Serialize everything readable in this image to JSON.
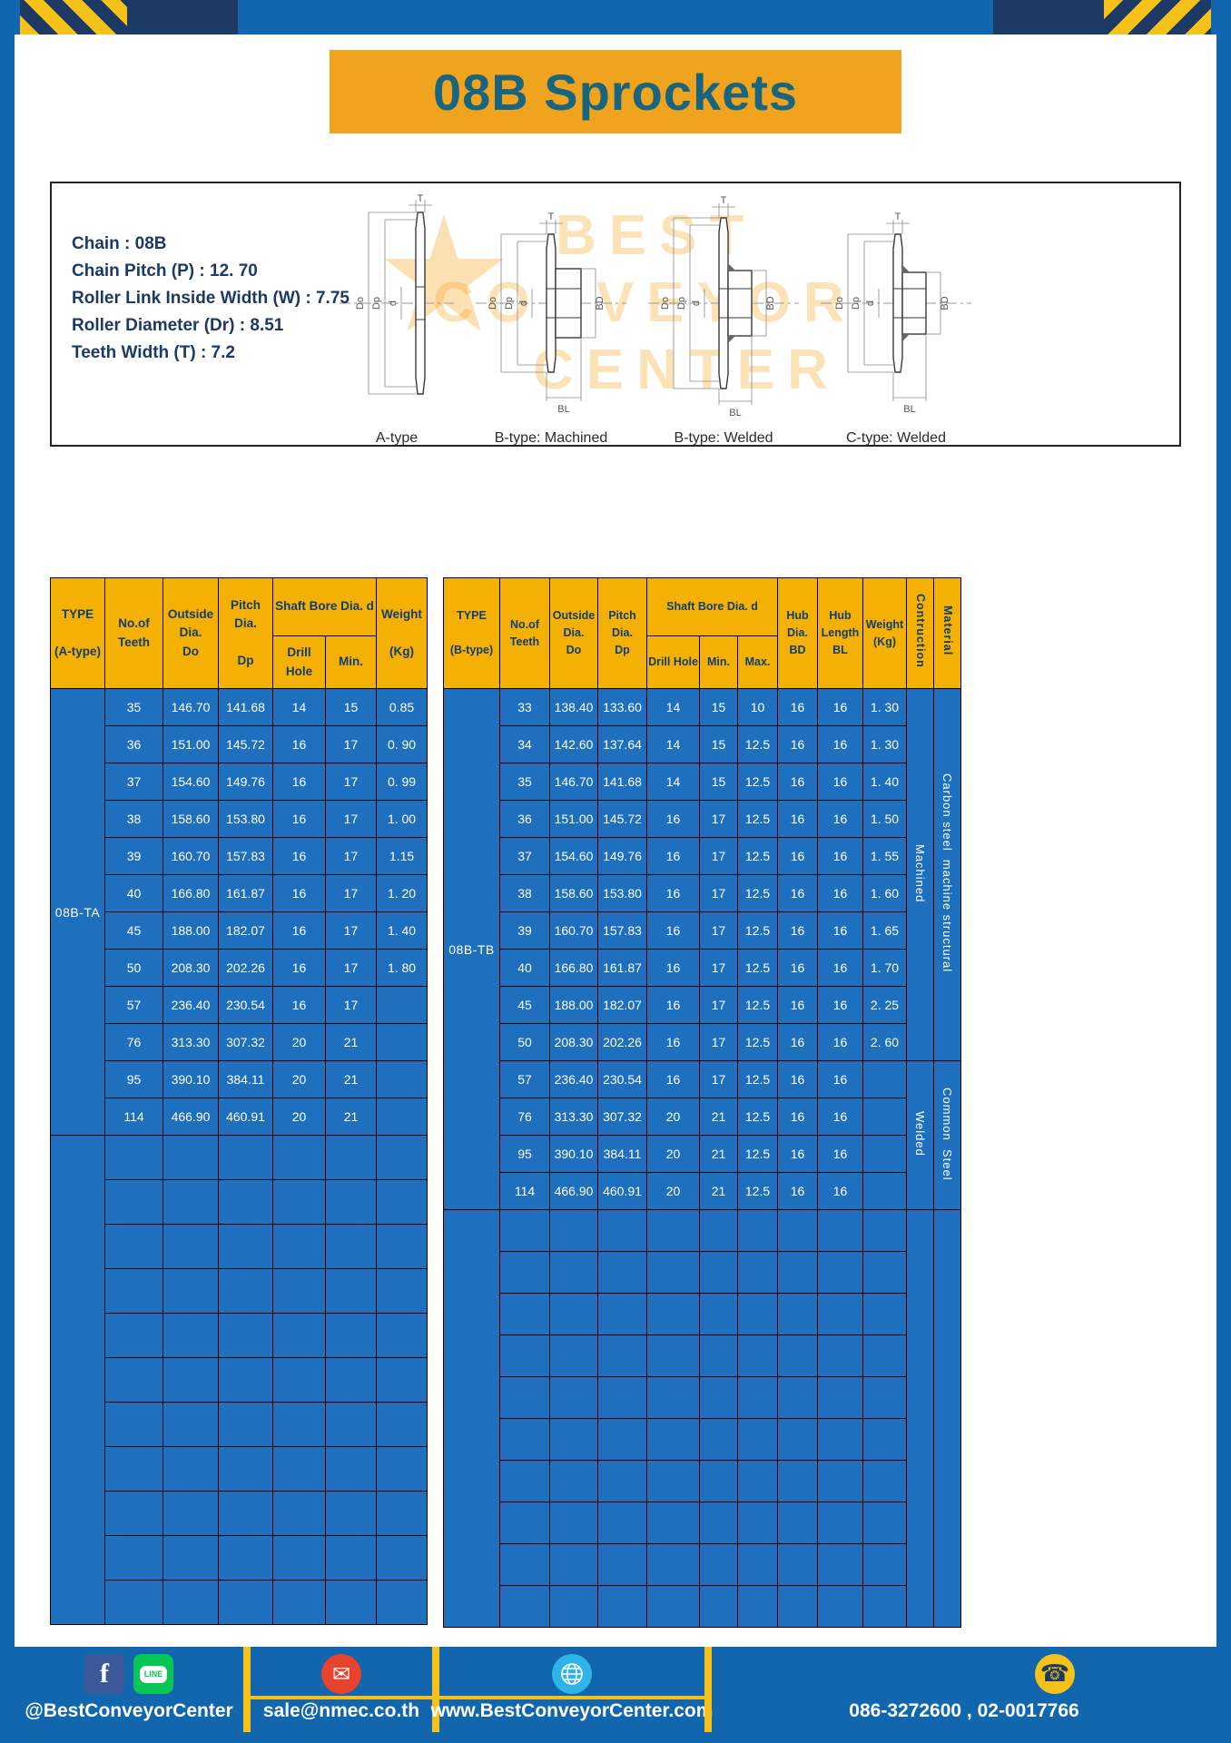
{
  "page": {
    "title": "08B Sprockets"
  },
  "specs": {
    "lines": [
      "Chain : 08B",
      "Chain Pitch (P) : 12. 70",
      "Roller Link Inside Width (W) : 7.75",
      "Roller Diameter (Dr) : 8.51",
      "Teeth Width (T) : 7.2"
    ]
  },
  "drawings": {
    "labels": [
      "A-type",
      "B-type: Machined",
      "B-type: Welded",
      "C-type: Welded"
    ],
    "dims": {
      "t": "T",
      "outside": "Do",
      "pitch": "Dp",
      "bore": "d",
      "hub": "BD",
      "hub_length": "BL"
    },
    "watermark": {
      "line1": "BEST",
      "line2": "CONVEYOR",
      "line3": "CENTER"
    }
  },
  "tables": {
    "left": {
      "type_label": "08B-TA",
      "headers": {
        "type": "TYPE\n\n(A-type)",
        "teeth": "No.of\nTeeth",
        "outside": "Outside\nDia.\nDo",
        "pitch": "Pitch Dia.\n\nDp",
        "shaft_group": "Shaft Bore Dia. d",
        "drill": "Drill Hole",
        "min": "Min.",
        "weight": "Weight\n\n(Kg)"
      },
      "rows": [
        [
          "35",
          "146.70",
          "141.68",
          "14",
          "15",
          "0.85"
        ],
        [
          "36",
          "151.00",
          "145.72",
          "16",
          "17",
          "0. 90"
        ],
        [
          "37",
          "154.60",
          "149.76",
          "16",
          "17",
          "0. 99"
        ],
        [
          "38",
          "158.60",
          "153.80",
          "16",
          "17",
          "1. 00"
        ],
        [
          "39",
          "160.70",
          "157.83",
          "16",
          "17",
          "1.15"
        ],
        [
          "40",
          "166.80",
          "161.87",
          "16",
          "17",
          "1. 20"
        ],
        [
          "45",
          "188.00",
          "182.07",
          "16",
          "17",
          "1. 40"
        ],
        [
          "50",
          "208.30",
          "202.26",
          "16",
          "17",
          "1. 80"
        ],
        [
          "57",
          "236.40",
          "230.54",
          "16",
          "17",
          ""
        ],
        [
          "76",
          "313.30",
          "307.32",
          "20",
          "21",
          ""
        ],
        [
          "95",
          "390.10",
          "384.11",
          "20",
          "21",
          ""
        ],
        [
          "114",
          "466.90",
          "460.91",
          "20",
          "21",
          ""
        ]
      ],
      "empty_rows": 11
    },
    "right": {
      "type_label": "08B-TB",
      "headers": {
        "type": "TYPE\n\n(B-type)",
        "teeth": "No.of\nTeeth",
        "outside": "Outside\nDia.\nDo",
        "pitch": "Pitch Dia.\nDp",
        "shaft_group": "Shaft Bore Dia. d",
        "drill": "Drill Hole",
        "min": "Min.",
        "max": "Max.",
        "hub_dia": "Hub Dia.\nBD",
        "hub_length": "Hub\nLength\nBL",
        "weight": "Weight\n(Kg)",
        "construction": "Contruction",
        "material": "Material"
      },
      "rows": [
        [
          "33",
          "138.40",
          "133.60",
          "14",
          "15",
          "10",
          "16",
          "16",
          "1. 30"
        ],
        [
          "34",
          "142.60",
          "137.64",
          "14",
          "15",
          "12.5",
          "16",
          "16",
          "1. 30"
        ],
        [
          "35",
          "146.70",
          "141.68",
          "14",
          "15",
          "12.5",
          "16",
          "16",
          "1. 40"
        ],
        [
          "36",
          "151.00",
          "145.72",
          "16",
          "17",
          "12.5",
          "16",
          "16",
          "1. 50"
        ],
        [
          "37",
          "154.60",
          "149.76",
          "16",
          "17",
          "12.5",
          "16",
          "16",
          "1. 55"
        ],
        [
          "38",
          "158.60",
          "153.80",
          "16",
          "17",
          "12.5",
          "16",
          "16",
          "1. 60"
        ],
        [
          "39",
          "160.70",
          "157.83",
          "16",
          "17",
          "12.5",
          "16",
          "16",
          "1. 65"
        ],
        [
          "40",
          "166.80",
          "161.87",
          "16",
          "17",
          "12.5",
          "16",
          "16",
          "1. 70"
        ],
        [
          "45",
          "188.00",
          "182.07",
          "16",
          "17",
          "12.5",
          "16",
          "16",
          "2. 25"
        ],
        [
          "50",
          "208.30",
          "202.26",
          "16",
          "17",
          "12.5",
          "16",
          "16",
          "2. 60"
        ],
        [
          "57",
          "236.40",
          "230.54",
          "16",
          "17",
          "12.5",
          "16",
          "16",
          ""
        ],
        [
          "76",
          "313.30",
          "307.32",
          "20",
          "21",
          "12.5",
          "16",
          "16",
          ""
        ],
        [
          "95",
          "390.10",
          "384.11",
          "20",
          "21",
          "12.5",
          "16",
          "16",
          ""
        ],
        [
          "114",
          "466.90",
          "460.91",
          "20",
          "21",
          "12.5",
          "16",
          "16",
          ""
        ]
      ],
      "groups": [
        {
          "start": 0,
          "span": 10,
          "construction": "Machined",
          "material": "Carbon steel  machine structural"
        },
        {
          "start": 10,
          "span": 4,
          "construction": "Welded",
          "material": "Common  Steel"
        }
      ],
      "empty_rows": 10
    }
  },
  "footer": {
    "sections": [
      {
        "label": "@BestConveyorCenter"
      },
      {
        "label": "sale@nmec.co.th"
      },
      {
        "label": "www.BestConveyorCenter.com"
      },
      {
        "label": "086-3272600 , 02-0017766"
      }
    ],
    "glyphs": {
      "facebook": "f",
      "line": "LINE",
      "email": "✉",
      "phone": "☎"
    }
  },
  "colors": {
    "page_blue": "#1166ad",
    "navy": "#1c3a63",
    "accent_yellow": "#f6c21a",
    "banner_orange": "#f0a41e",
    "title_text": "#19647e",
    "header_yellow": "#f5b103",
    "table_blue": "#1e6fbd",
    "facebook_blue": "#3b5998",
    "line_green": "#06c755",
    "email_red": "#e8432e",
    "globe_blue": "#2fb4e9"
  }
}
